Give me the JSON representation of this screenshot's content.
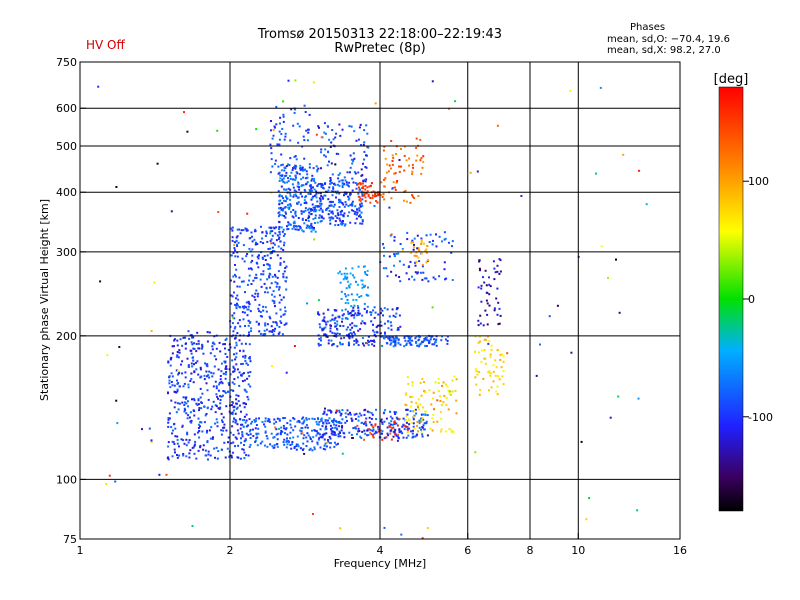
{
  "header": {
    "title_line1": "Tromsø 20150313 22:18:00–22:19:43",
    "title_line2": "RwPretec (8p)",
    "hv_status": "HV Off",
    "phases_label": "Phases",
    "stats_o": "mean, sd,O: −70.4, 19.6",
    "stats_x": "mean, sd,X: 98.2, 27.0"
  },
  "colors": {
    "hv_status": "#d00000",
    "grid": "#000000"
  },
  "chart_data": {
    "type": "scatter",
    "xlabel": "Frequency [MHz]",
    "ylabel": "Stationary phase Virtual Height [km]",
    "x_scale": "log",
    "y_scale": "log",
    "xlim": [
      1,
      16
    ],
    "ylim": [
      75,
      750
    ],
    "x_ticks": [
      1,
      2,
      4,
      6,
      8,
      10,
      16
    ],
    "y_ticks": [
      75,
      100,
      200,
      300,
      400,
      500,
      600,
      750
    ],
    "x_gridlines": [
      2,
      4,
      6,
      8,
      10
    ],
    "y_gridlines": [
      100,
      200,
      300,
      400,
      500,
      600
    ],
    "colorbar": {
      "label": "[deg]",
      "range": [
        -180,
        180
      ],
      "ticks": [
        100,
        0,
        -100
      ]
    },
    "clusters": [
      {
        "x": [
          1.5,
          2.2
        ],
        "y": [
          110,
          205
        ],
        "c": [
          -125,
          -70
        ],
        "n": 520
      },
      {
        "x": [
          2.0,
          2.6
        ],
        "y": [
          200,
          340
        ],
        "c": [
          -115,
          -70
        ],
        "n": 320
      },
      {
        "x": [
          2.1,
          3.3
        ],
        "y": [
          115,
          135
        ],
        "c": [
          -110,
          -60
        ],
        "n": 220
      },
      {
        "x": [
          3.0,
          5.0
        ],
        "y": [
          122,
          140
        ],
        "c": [
          -130,
          -60
        ],
        "n": 260
      },
      {
        "x": [
          3.6,
          4.6
        ],
        "y": [
          120,
          135
        ],
        "c": [
          130,
          170
        ],
        "n": 30
      },
      {
        "x": [
          4.5,
          5.7
        ],
        "y": [
          125,
          165
        ],
        "c": [
          40,
          110
        ],
        "n": 90
      },
      {
        "x": [
          2.5,
          3.0
        ],
        "y": [
          330,
          460
        ],
        "c": [
          -120,
          -50
        ],
        "n": 280
      },
      {
        "x": [
          2.4,
          2.9
        ],
        "y": [
          440,
          620
        ],
        "c": [
          -110,
          -70
        ],
        "n": 60
      },
      {
        "x": [
          3.0,
          3.7
        ],
        "y": [
          340,
          420
        ],
        "c": [
          -120,
          -60
        ],
        "n": 200
      },
      {
        "x": [
          3.0,
          3.8
        ],
        "y": [
          420,
          560
        ],
        "c": [
          -130,
          -60
        ],
        "n": 90
      },
      {
        "x": [
          3.6,
          4.0
        ],
        "y": [
          380,
          420
        ],
        "c": [
          140,
          170
        ],
        "n": 50
      },
      {
        "x": [
          4.0,
          4.9
        ],
        "y": [
          380,
          520
        ],
        "c": [
          100,
          160
        ],
        "n": 70
      },
      {
        "x": [
          3.0,
          4.4
        ],
        "y": [
          190,
          230
        ],
        "c": [
          -130,
          -60
        ],
        "n": 220
      },
      {
        "x": [
          4.0,
          5.5
        ],
        "y": [
          190,
          200
        ],
        "c": [
          -110,
          -60
        ],
        "n": 100
      },
      {
        "x": [
          3.3,
          3.8
        ],
        "y": [
          230,
          280
        ],
        "c": [
          -70,
          -40
        ],
        "n": 60
      },
      {
        "x": [
          4.0,
          5.6
        ],
        "y": [
          260,
          330
        ],
        "c": [
          -130,
          -60
        ],
        "n": 80
      },
      {
        "x": [
          4.6,
          5.0
        ],
        "y": [
          280,
          320
        ],
        "c": [
          80,
          110
        ],
        "n": 25
      },
      {
        "x": [
          6.2,
          7.1
        ],
        "y": [
          150,
          200
        ],
        "c": [
          50,
          100
        ],
        "n": 60
      },
      {
        "x": [
          6.3,
          7.0
        ],
        "y": [
          210,
          290
        ],
        "c": [
          -160,
          -100
        ],
        "n": 50
      },
      {
        "x": [
          1.05,
          14.0
        ],
        "y": [
          75,
          700
        ],
        "c": [
          -180,
          180
        ],
        "n": 110
      }
    ]
  }
}
